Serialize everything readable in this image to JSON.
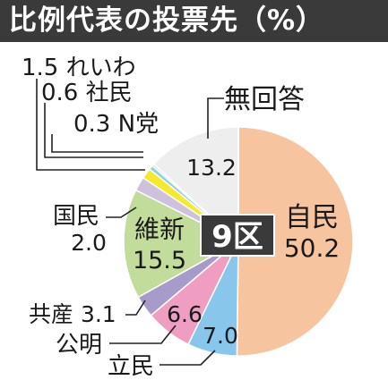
{
  "title": "比例代表の投票先（%）",
  "chart_data": {
    "type": "pie",
    "title": "比例代表の投票先（%）",
    "center_label": "9区",
    "start_angle_deg": 0,
    "direction": "clockwise",
    "slices": [
      {
        "name": "自民",
        "value": 50.2,
        "color": "#f7c4a0"
      },
      {
        "name": "立民",
        "value": 7.0,
        "color": "#88c6ec"
      },
      {
        "name": "公明",
        "value": 6.6,
        "color": "#ef9ec1"
      },
      {
        "name": "共産",
        "value": 3.1,
        "color": "#a79bc9"
      },
      {
        "name": "維新",
        "value": 15.5,
        "color": "#c2dc9c"
      },
      {
        "name": "国民",
        "value": 2.0,
        "color": "#cdc1de"
      },
      {
        "name": "れいわ",
        "value": 1.5,
        "color": "#f4e92a"
      },
      {
        "name": "社民",
        "value": 0.6,
        "color": "#8fd1e0"
      },
      {
        "name": "N党",
        "value": 0.3,
        "color": "#b8d8e8"
      },
      {
        "name": "無回答",
        "value": 13.2,
        "color": "#eeeeee"
      }
    ]
  }
}
